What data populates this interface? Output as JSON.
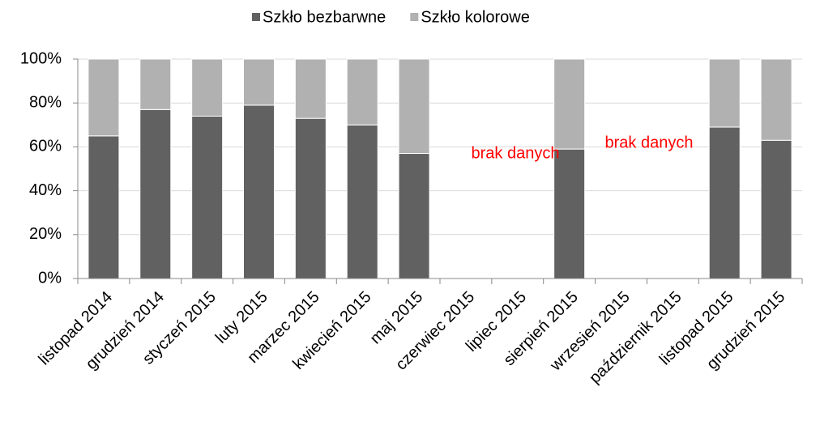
{
  "chart_data": {
    "type": "stacked_bar",
    "categories": [
      "listopad 2014",
      "grudzień 2014",
      "styczeń 2015",
      "luty 2015",
      "marzec 2015",
      "kwiecień 2015",
      "maj 2015",
      "czerwiec 2015",
      "lipiec 2015",
      "sierpień 2015",
      "wrzesień 2015",
      "październik 2015",
      "listopad 2015",
      "grudzień 2015"
    ],
    "series": [
      {
        "name": "Szkło bezbarwne",
        "color": "#616161",
        "values": [
          65,
          77,
          74,
          79,
          73,
          70,
          57,
          null,
          null,
          59,
          null,
          null,
          69,
          63
        ]
      },
      {
        "name": "Szkło kolorowe",
        "color": "#b1b1b1",
        "values": [
          35,
          23,
          26,
          21,
          27,
          30,
          43,
          null,
          null,
          41,
          null,
          null,
          31,
          37
        ]
      }
    ],
    "ylim": [
      0,
      100
    ],
    "yticks": [
      {
        "value": 0,
        "label": "0%"
      },
      {
        "value": 20,
        "label": "20%"
      },
      {
        "value": 40,
        "label": "40%"
      },
      {
        "value": 60,
        "label": "60%"
      },
      {
        "value": 80,
        "label": "80%"
      },
      {
        "value": 100,
        "label": "100%"
      }
    ],
    "grid": true,
    "legend": "top",
    "annotations": [
      "brak danych",
      "brak danych"
    ]
  }
}
